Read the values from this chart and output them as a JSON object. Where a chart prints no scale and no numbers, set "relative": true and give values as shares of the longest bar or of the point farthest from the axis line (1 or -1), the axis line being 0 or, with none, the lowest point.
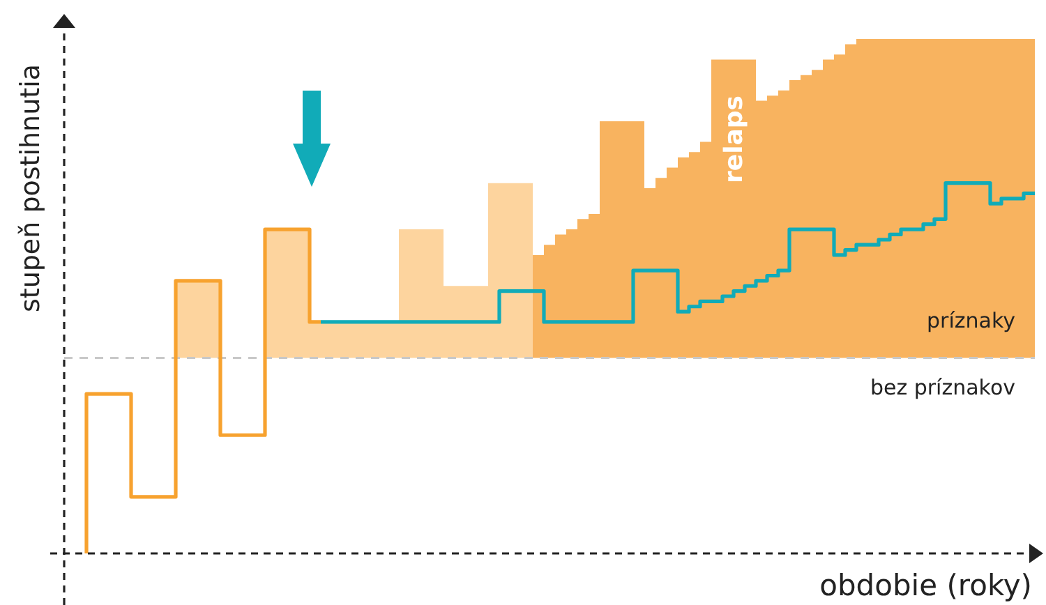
{
  "chart_data": {
    "type": "step",
    "relative": true,
    "tick_labels": false,
    "xlabel": "obdobie (roky)",
    "ylabel": "stupeň postihnutia",
    "categories": [
      null,
      null,
      null,
      null,
      null,
      null,
      null,
      null,
      null,
      null,
      null,
      null,
      null,
      null,
      null,
      null,
      null,
      null,
      null,
      null,
      null,
      null,
      null,
      null,
      null,
      null,
      null,
      null,
      null,
      null,
      null,
      null,
      null,
      null,
      null,
      null,
      null,
      null,
      null,
      null,
      null,
      null,
      null,
      null,
      null,
      null,
      null,
      null,
      null,
      null,
      null,
      null,
      null,
      null,
      null,
      null,
      null,
      null,
      null,
      null,
      null,
      null,
      null,
      null,
      null,
      null,
      null,
      null,
      null,
      null,
      null,
      null,
      null,
      null,
      null,
      null,
      null,
      null,
      null,
      null,
      null,
      null,
      null,
      null,
      null,
      null,
      null,
      null
    ],
    "series": [
      {
        "type": "area",
        "color": "#fdd49e",
        "values": [
          null,
          null,
          null,
          null,
          null,
          null,
          null,
          null,
          null,
          null,
          0.53,
          0.53,
          0.53,
          0.53,
          0.53,
          null,
          null,
          null,
          0.63,
          0.63,
          0.63,
          0.63,
          0.63,
          0.45,
          0.45,
          0.45,
          0.45,
          0.45,
          0.45,
          0.45,
          0.45,
          0.63,
          0.63,
          0.63,
          0.63,
          0.52,
          0.52,
          0.52,
          0.52,
          0.72,
          0.72,
          0.72,
          0.72,
          null,
          null,
          null,
          null,
          null,
          null,
          null,
          null,
          null,
          null,
          null,
          null,
          null,
          null,
          null,
          null,
          null,
          null,
          null,
          null,
          null,
          null,
          null,
          null,
          null,
          null,
          null,
          null,
          null,
          null,
          null,
          null,
          null,
          null,
          null,
          null,
          null,
          null,
          null,
          null,
          null,
          null,
          null,
          null,
          null
        ]
      },
      {
        "type": "area",
        "color": "#f8b35f",
        "values": [
          null,
          null,
          null,
          null,
          null,
          null,
          null,
          null,
          null,
          null,
          null,
          null,
          null,
          null,
          null,
          null,
          null,
          null,
          null,
          null,
          null,
          null,
          null,
          null,
          null,
          null,
          null,
          null,
          null,
          null,
          null,
          null,
          null,
          null,
          null,
          null,
          null,
          null,
          null,
          null,
          null,
          null,
          0.56,
          0.58,
          0.6,
          0.62,
          0.63,
          0.65,
          0.66,
          0.84,
          0.84,
          0.84,
          0.84,
          0.71,
          0.73,
          0.75,
          0.77,
          0.78,
          0.8,
          0.96,
          0.96,
          0.96,
          0.96,
          0.88,
          0.89,
          0.9,
          0.92,
          0.93,
          0.94,
          0.96,
          0.97,
          0.99,
          1,
          1,
          1,
          1,
          1,
          1,
          1,
          1,
          1,
          1,
          1,
          1,
          1,
          1,
          1,
          1
        ]
      },
      {
        "color": "#f7a22f",
        "values": [
          null,
          null,
          0,
          0.31,
          0.31,
          0.31,
          0.31,
          0.11,
          0.11,
          0.11,
          0.11,
          0.53,
          0.53,
          0.53,
          0.53,
          0.23,
          0.23,
          0.23,
          0.23,
          0.63,
          0.63,
          0.63,
          0.63,
          0.45,
          null,
          null,
          null,
          null,
          null,
          null,
          null,
          null,
          null,
          null,
          null,
          null,
          null,
          null,
          null,
          null,
          null,
          null,
          null,
          null,
          null,
          null,
          null,
          null,
          null,
          null,
          null,
          null,
          null,
          null,
          null,
          null,
          null,
          null,
          null,
          null,
          null,
          null,
          null,
          null,
          null,
          null,
          null,
          null,
          null,
          null,
          null,
          null,
          null,
          null,
          null,
          null,
          null,
          null,
          null,
          null,
          null,
          null,
          null,
          null,
          null,
          null,
          null,
          null
        ]
      },
      {
        "color": "#11abb8",
        "values": [
          null,
          null,
          null,
          null,
          null,
          null,
          null,
          null,
          null,
          null,
          null,
          null,
          null,
          null,
          null,
          null,
          null,
          null,
          null,
          null,
          null,
          null,
          null,
          0.45,
          0.45,
          0.45,
          0.45,
          0.45,
          0.45,
          0.45,
          0.45,
          0.45,
          0.45,
          0.45,
          0.45,
          0.45,
          0.45,
          0.45,
          0.45,
          0.45,
          0.51,
          0.51,
          0.51,
          0.51,
          0.45,
          0.45,
          0.45,
          0.45,
          0.45,
          0.45,
          0.45,
          0.45,
          0.55,
          0.55,
          0.55,
          0.55,
          0.47,
          0.48,
          0.49,
          0.49,
          0.5,
          0.51,
          0.52,
          0.53,
          0.54,
          0.55,
          0.63,
          0.63,
          0.63,
          0.63,
          0.58,
          0.59,
          0.6,
          0.6,
          0.61,
          0.62,
          0.63,
          0.63,
          0.64,
          0.65,
          0.72,
          0.72,
          0.72,
          0.72,
          0.68,
          0.69,
          0.69,
          0.7
        ]
      }
    ],
    "ref_lines": [
      {
        "axis": "y",
        "value": 0.38,
        "color": "#c8c8c8",
        "line_style": "dashed"
      }
    ],
    "annotations": [
      "relaps",
      "príznaky",
      "bez príznakov"
    ]
  }
}
